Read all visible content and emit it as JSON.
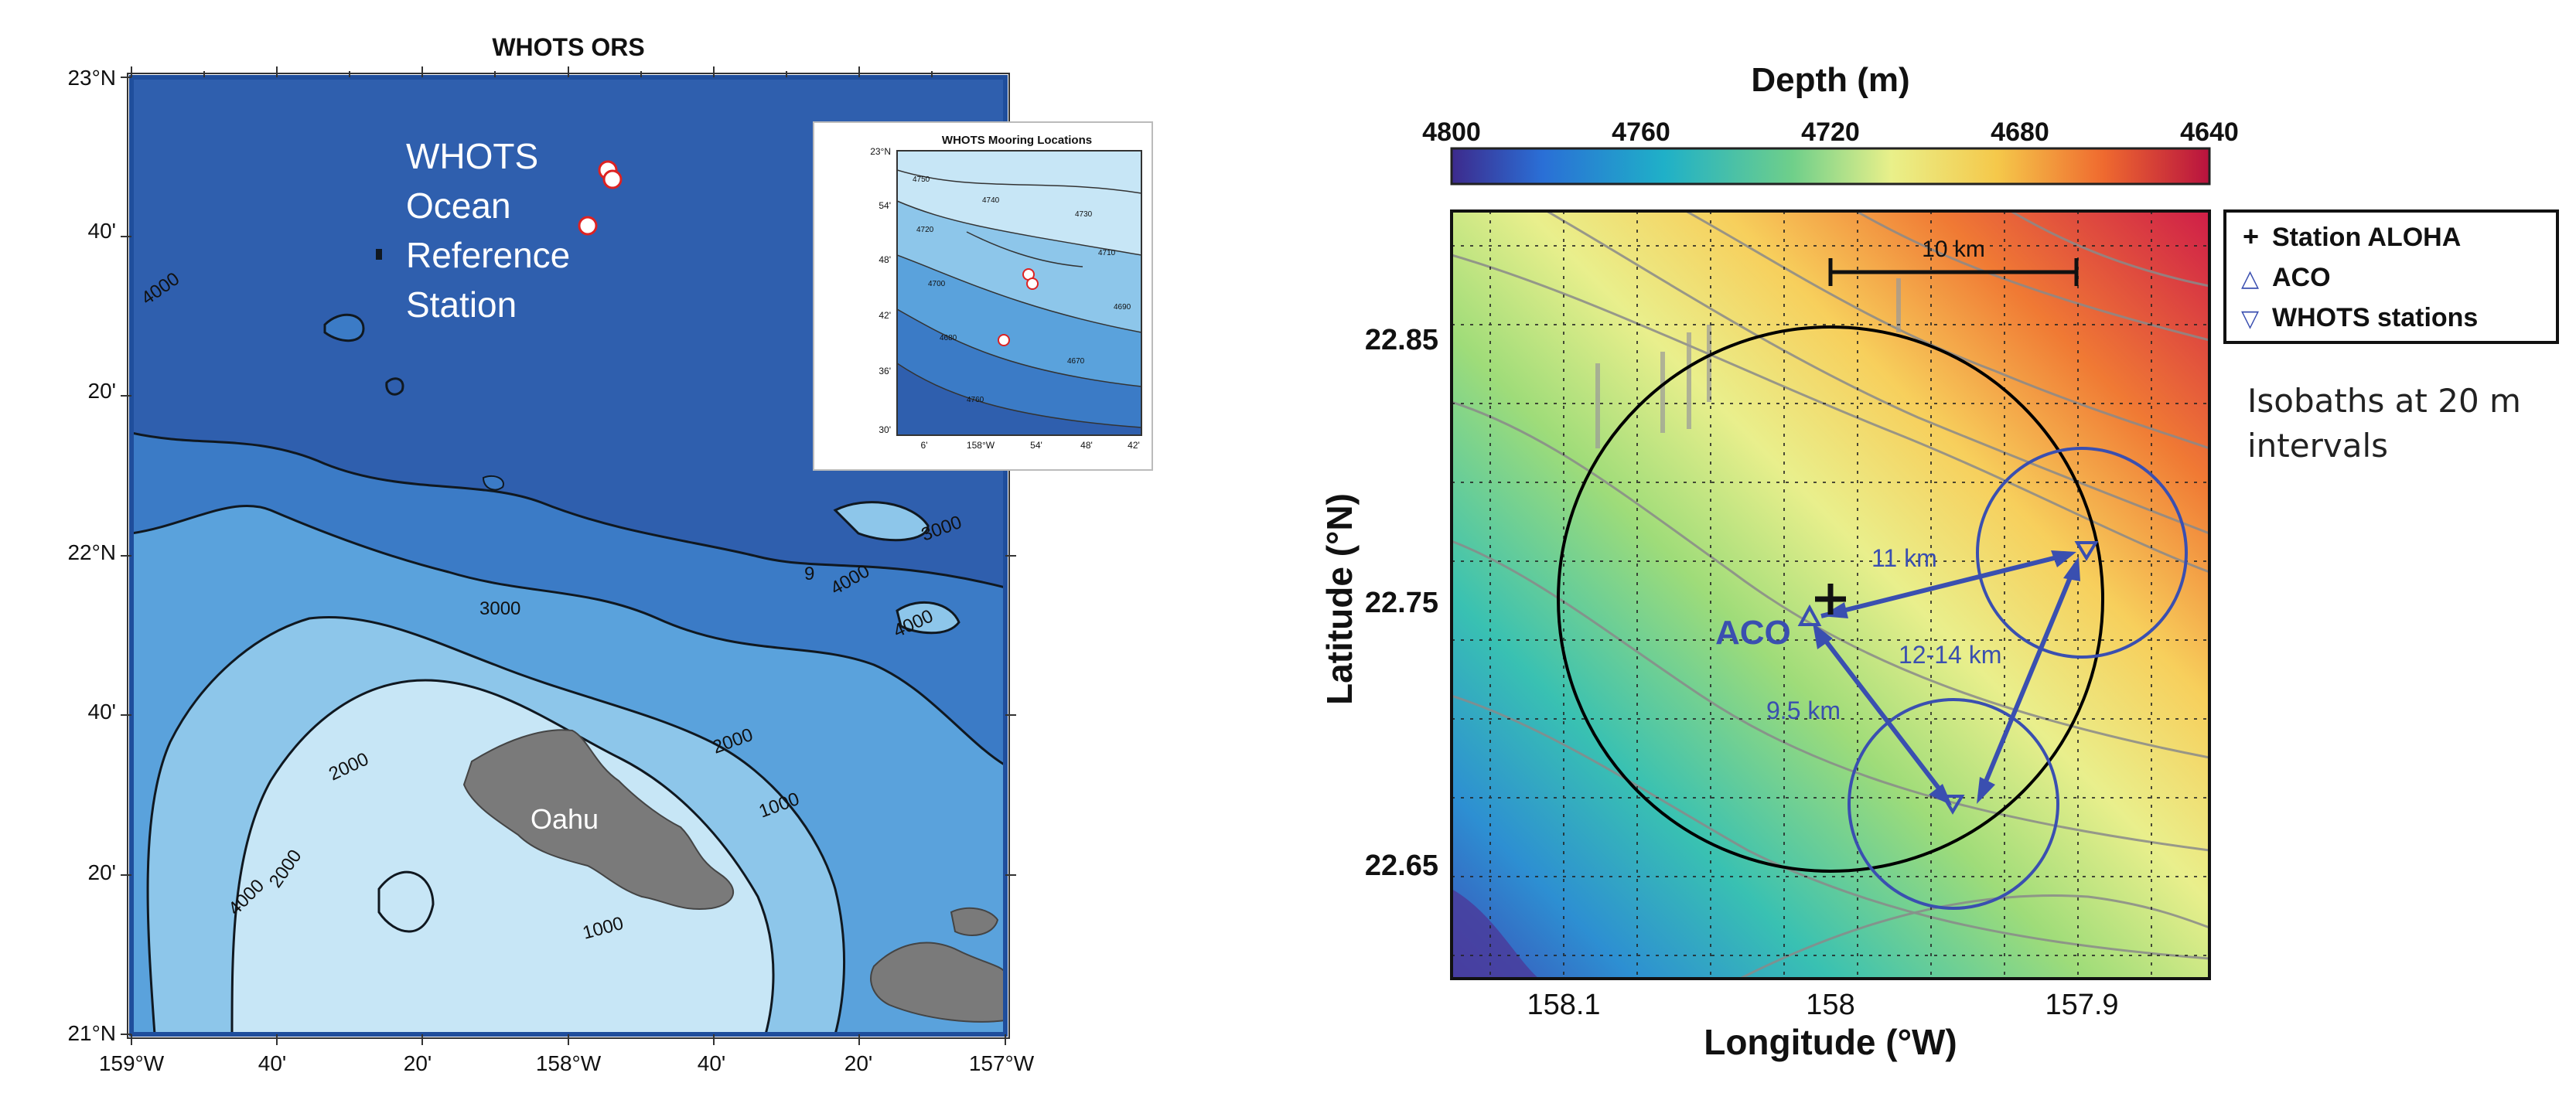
{
  "left_map": {
    "title": "WHOTS ORS",
    "station_label": [
      "WHOTS",
      "Ocean",
      "Reference",
      "Station"
    ],
    "island_label": "Oahu",
    "lat_ticks": [
      "23°N",
      "40'",
      "20'",
      "22°N",
      "40'",
      "20'",
      "21°N"
    ],
    "lon_ticks": [
      "159°W",
      "40'",
      "20'",
      "158°W",
      "40'",
      "20'",
      "157°W"
    ],
    "contour_labels": [
      "4000",
      "3000",
      "3000",
      "4000",
      "4000",
      "2000",
      "2000",
      "1000",
      "1000",
      "2000",
      "4000",
      "9"
    ],
    "colors": {
      "deep": "#2f5fae",
      "mid_deep": "#3b7bc6",
      "mid": "#5aa2dc",
      "shallow": "#8dc6ea",
      "coast": "#c7e6f6",
      "land": "#7a7a7a",
      "frame": "#1f4e9c"
    },
    "inset": {
      "title": "WHOTS Mooring Locations",
      "lat_ticks": [
        "23°N",
        "54'",
        "48'",
        "42'",
        "36'",
        "30'"
      ],
      "lon_ticks": [
        "6'",
        "158°W",
        "54'",
        "48'",
        "42'"
      ],
      "contour_labels": [
        "4750",
        "4740",
        "4730",
        "4720",
        "4710",
        "4700",
        "4690",
        "4680",
        "4670",
        "4760"
      ]
    }
  },
  "right_map": {
    "colorbar_title": "Depth (m)",
    "colorbar_ticks": [
      "4800",
      "4760",
      "4720",
      "4680",
      "4640"
    ],
    "scale_bar": "10 km",
    "ylabel": "Latitude (°N)",
    "xlabel": "Longitude (°W)",
    "lat_ticks": [
      "22.85",
      "22.75",
      "22.65"
    ],
    "lon_ticks": [
      "158.1",
      "158",
      "157.9"
    ],
    "legend": [
      {
        "symbol": "+",
        "label": "Station ALOHA"
      },
      {
        "symbol": "△",
        "label": "ACO"
      },
      {
        "symbol": "▽",
        "label": "WHOTS stations"
      }
    ],
    "aco_label": "ACO",
    "distances": [
      "11 km",
      "12-14 km",
      "9.5 km"
    ],
    "note": "Isobaths at 20 m intervals",
    "colors": {
      "marker_blue": "#3a4fb0",
      "circle_black": "#000000"
    }
  }
}
